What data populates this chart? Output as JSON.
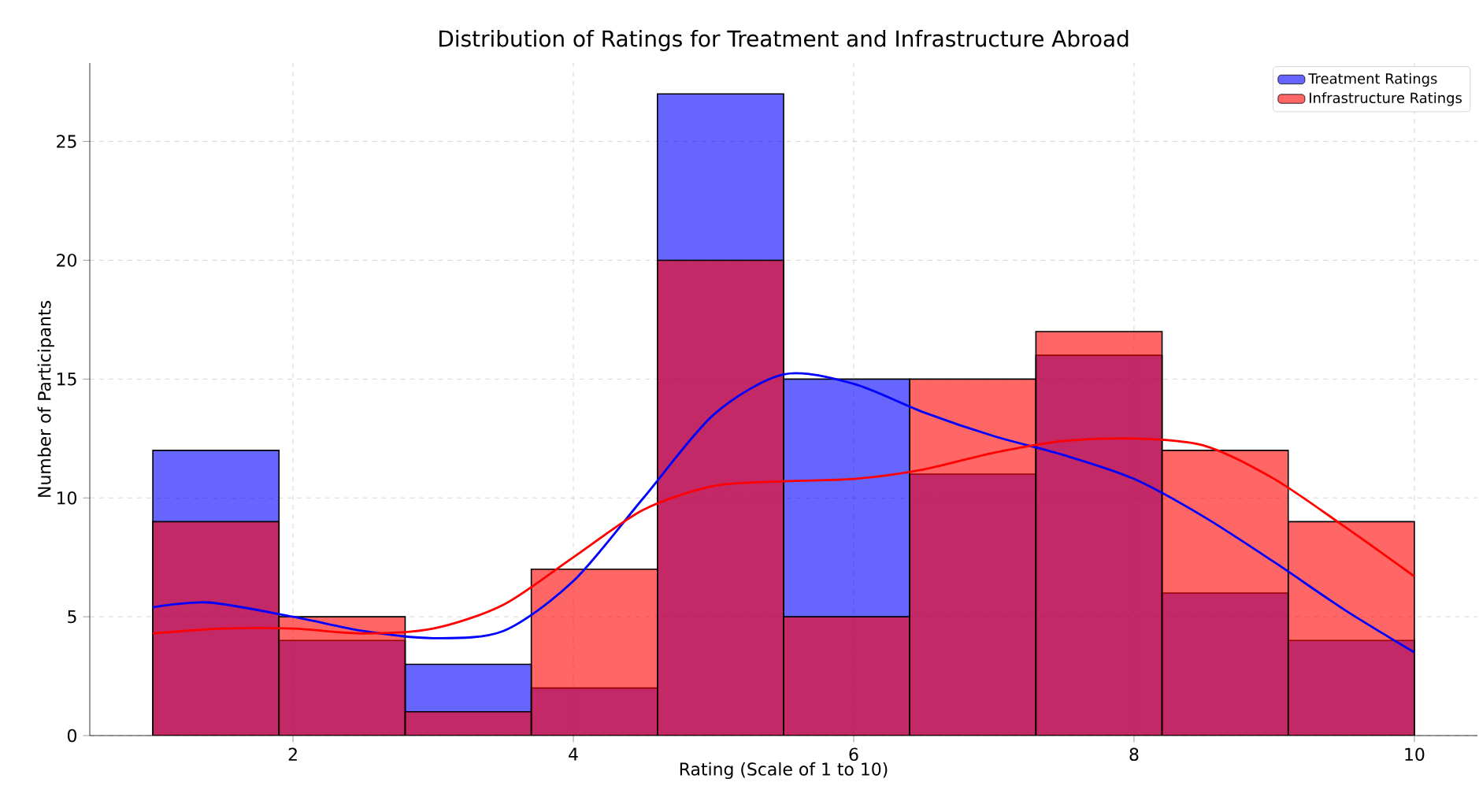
{
  "chart_data": {
    "type": "histogram",
    "title": "Distribution of Ratings for Treatment and Infrastructure Abroad",
    "xlabel": "Rating (Scale of 1 to 10)",
    "ylabel": "Number of Participants",
    "bins": [
      1,
      1.9,
      2.8,
      3.7,
      4.6,
      5.5,
      6.4,
      7.3,
      8.2,
      9.1,
      10
    ],
    "series": [
      {
        "name": "Treatment Ratings",
        "color": "#0000ff",
        "values": [
          12,
          4,
          3,
          2,
          27,
          15,
          11,
          16,
          6,
          4
        ]
      },
      {
        "name": "Infrastructure Ratings",
        "color": "#ff0000",
        "values": [
          9,
          5,
          1,
          7,
          20,
          5,
          15,
          17,
          12,
          9
        ]
      },
      {
        "type": "line",
        "color": "#0000ff",
        "x": [
          1,
          1.4,
          2,
          2.5,
          3,
          3.5,
          4,
          4.5,
          5,
          5.5,
          6,
          6.5,
          7,
          7.5,
          8,
          8.5,
          9,
          9.5,
          10
        ],
        "values": [
          5.4,
          5.6,
          5.0,
          4.4,
          4.1,
          4.4,
          6.5,
          10,
          13.5,
          15.2,
          14.8,
          13.6,
          12.6,
          11.8,
          10.8,
          9.2,
          7.3,
          5.3,
          3.5
        ]
      },
      {
        "type": "line",
        "color": "#ff0000",
        "x": [
          1,
          1.5,
          2,
          2.5,
          3,
          3.5,
          4,
          4.5,
          5,
          5.5,
          6,
          6.5,
          7,
          7.5,
          8,
          8.5,
          9,
          9.5,
          10
        ],
        "values": [
          4.3,
          4.5,
          4.5,
          4.3,
          4.5,
          5.5,
          7.5,
          9.5,
          10.5,
          10.7,
          10.8,
          11.2,
          11.9,
          12.4,
          12.5,
          12.2,
          10.8,
          8.8,
          6.7
        ]
      }
    ],
    "xlim": [
      0.55,
      10.45
    ],
    "ylim": [
      0,
      28.3
    ],
    "xticks": [
      2,
      4,
      6,
      8,
      10
    ],
    "yticks": [
      0,
      5,
      10,
      15,
      20,
      25
    ],
    "grid": true,
    "legend": "top right"
  }
}
